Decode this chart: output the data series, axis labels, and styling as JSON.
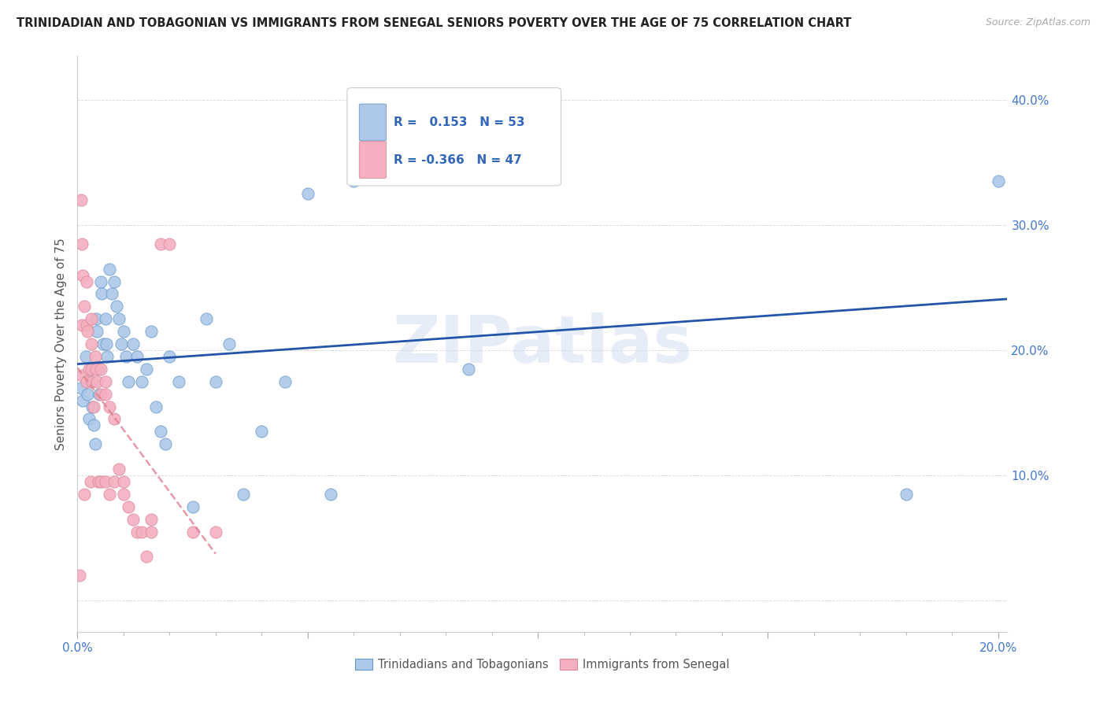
{
  "title": "TRINIDADIAN AND TOBAGONIAN VS IMMIGRANTS FROM SENEGAL SENIORS POVERTY OVER THE AGE OF 75 CORRELATION CHART",
  "source": "Source: ZipAtlas.com",
  "ylabel": "Seniors Poverty Over the Age of 75",
  "xlim": [
    0.0,
    0.202
  ],
  "ylim": [
    -0.025,
    0.435
  ],
  "R_blue": 0.153,
  "N_blue": 53,
  "R_pink": -0.366,
  "N_pink": 47,
  "legend_labels": [
    "Trinidadians and Tobagonians",
    "Immigrants from Senegal"
  ],
  "blue_color": "#adc8e8",
  "pink_color": "#f4afc0",
  "blue_edge_color": "#6699cc",
  "pink_edge_color": "#dd8899",
  "blue_line_color": "#2255aa",
  "pink_line_color": "#e08090",
  "watermark": "ZIPatlas",
  "blue_scatter_x": [
    0.0008,
    0.0012,
    0.0018,
    0.0022,
    0.0025,
    0.003,
    0.003,
    0.0032,
    0.0035,
    0.0038,
    0.004,
    0.0042,
    0.0045,
    0.0048,
    0.005,
    0.0052,
    0.0055,
    0.006,
    0.0062,
    0.0065,
    0.007,
    0.0075,
    0.008,
    0.0085,
    0.009,
    0.0095,
    0.01,
    0.0105,
    0.011,
    0.012,
    0.013,
    0.014,
    0.015,
    0.016,
    0.017,
    0.018,
    0.019,
    0.02,
    0.022,
    0.025,
    0.028,
    0.03,
    0.033,
    0.036,
    0.04,
    0.045,
    0.05,
    0.055,
    0.06,
    0.07,
    0.085,
    0.18,
    0.2
  ],
  "blue_scatter_y": [
    0.17,
    0.16,
    0.195,
    0.165,
    0.145,
    0.185,
    0.175,
    0.155,
    0.14,
    0.125,
    0.225,
    0.215,
    0.185,
    0.165,
    0.255,
    0.245,
    0.205,
    0.225,
    0.205,
    0.195,
    0.265,
    0.245,
    0.255,
    0.235,
    0.225,
    0.205,
    0.215,
    0.195,
    0.175,
    0.205,
    0.195,
    0.175,
    0.185,
    0.215,
    0.155,
    0.135,
    0.125,
    0.195,
    0.175,
    0.075,
    0.225,
    0.175,
    0.205,
    0.085,
    0.135,
    0.175,
    0.325,
    0.085,
    0.335,
    0.405,
    0.185,
    0.085,
    0.335
  ],
  "pink_scatter_x": [
    0.0005,
    0.0008,
    0.001,
    0.001,
    0.001,
    0.0012,
    0.0015,
    0.002,
    0.002,
    0.002,
    0.0022,
    0.0025,
    0.0028,
    0.003,
    0.003,
    0.003,
    0.0032,
    0.0035,
    0.0038,
    0.004,
    0.0042,
    0.0045,
    0.005,
    0.005,
    0.005,
    0.006,
    0.006,
    0.006,
    0.007,
    0.007,
    0.008,
    0.008,
    0.009,
    0.01,
    0.01,
    0.011,
    0.012,
    0.013,
    0.014,
    0.015,
    0.016,
    0.016,
    0.018,
    0.02,
    0.025,
    0.03,
    0.0015
  ],
  "pink_scatter_y": [
    0.02,
    0.32,
    0.285,
    0.22,
    0.18,
    0.26,
    0.235,
    0.255,
    0.22,
    0.175,
    0.215,
    0.185,
    0.095,
    0.225,
    0.205,
    0.185,
    0.175,
    0.155,
    0.195,
    0.185,
    0.175,
    0.095,
    0.185,
    0.165,
    0.095,
    0.175,
    0.165,
    0.095,
    0.155,
    0.085,
    0.145,
    0.095,
    0.105,
    0.095,
    0.085,
    0.075,
    0.065,
    0.055,
    0.055,
    0.035,
    0.065,
    0.055,
    0.285,
    0.285,
    0.055,
    0.055,
    0.085
  ]
}
